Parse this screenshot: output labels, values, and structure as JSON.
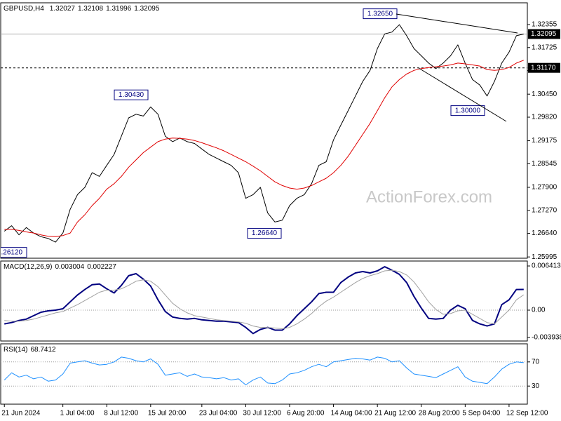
{
  "chart_data": [
    {
      "type": "line",
      "title": "GBPUSD,H4",
      "ohlc": [
        1.32027,
        1.32108,
        1.31996,
        1.32095
      ],
      "watermark": "ActionForex.com",
      "ylim": [
        1.2596,
        1.3295
      ],
      "yticks": [
        1.32355,
        1.31725,
        1.31095,
        {
          "value": 1.3045,
          "label": "1.30450"
        },
        {
          "value": 1.2982,
          "label": "1.29820"
        },
        1.29175,
        1.28545,
        {
          "value": 1.279,
          "label": "1.27900"
        },
        {
          "value": 1.2727,
          "label": "1.27270"
        },
        {
          "value": 1.2664,
          "label": "1.26640"
        },
        1.25995
      ],
      "grid": false,
      "levels": [
        {
          "value": 1.32095,
          "dash": false
        },
        {
          "value": 1.3117,
          "label": "1.31170",
          "dash": true
        }
      ],
      "annotations": [
        {
          "value": 1.3265,
          "label": "1.32650"
        },
        {
          "value": 1.3043,
          "label": "1.30430"
        },
        {
          "value": 1.2664,
          "label": "1.26640"
        },
        {
          "value": 1.3,
          "label": "1.30000"
        },
        {
          "value": 1.2612,
          "label": "1.26120"
        }
      ],
      "series": [
        {
          "color": "#000000",
          "width": 1,
          "values": [
            1.267,
            1.2685,
            1.266,
            1.268,
            1.2665,
            1.2655,
            1.265,
            1.264,
            1.2665,
            1.273,
            1.277,
            1.279,
            1.283,
            1.282,
            1.285,
            1.288,
            1.293,
            1.298,
            1.299,
            1.2985,
            1.301,
            1.299,
            1.293,
            1.2915,
            1.2925,
            1.2915,
            1.291,
            1.2895,
            1.288,
            1.287,
            1.286,
            1.285,
            1.283,
            1.276,
            1.277,
            1.279,
            1.272,
            1.2695,
            1.27,
            1.274,
            1.276,
            1.277,
            1.28,
            1.285,
            1.286,
            1.292,
            1.296,
            1.3,
            1.304,
            1.308,
            1.311,
            1.317,
            1.321,
            1.3215,
            1.3235,
            1.3205,
            1.317,
            1.315,
            1.313,
            1.3115,
            1.313,
            1.315,
            1.318,
            1.313,
            1.3085,
            1.307,
            1.304,
            1.308,
            1.313,
            1.316,
            1.3205,
            1.32095
          ]
        },
        {
          "color": "#e00000",
          "width": 1,
          "values": [
            1.2675,
            1.2675,
            1.2672,
            1.2668,
            1.2665,
            1.266,
            1.2656,
            1.2655,
            1.2658,
            1.2665,
            1.2695,
            1.2715,
            1.274,
            1.276,
            1.2785,
            1.28,
            1.282,
            1.2845,
            1.2865,
            1.2885,
            1.29,
            1.2915,
            1.2922,
            1.2925,
            1.2924,
            1.2922,
            1.2918,
            1.2912,
            1.2905,
            1.2898,
            1.289,
            1.288,
            1.287,
            1.286,
            1.2848,
            1.2835,
            1.282,
            1.2805,
            1.2795,
            1.2788,
            1.2785,
            1.2788,
            1.2795,
            1.2805,
            1.2815,
            1.283,
            1.285,
            1.2875,
            1.2905,
            1.2935,
            1.2965,
            1.3,
            1.3035,
            1.3065,
            1.3085,
            1.31,
            1.311,
            1.3115,
            1.3118,
            1.312,
            1.3122,
            1.3125,
            1.313,
            1.3128,
            1.3125,
            1.3122,
            1.3112,
            1.311,
            1.3112,
            1.3118,
            1.313,
            1.3138
          ]
        }
      ]
    },
    {
      "type": "line",
      "title": "MACD(12,26,9)",
      "last_values": [
        0.003004,
        0.002227
      ],
      "ylim": [
        -0.00448,
        0.00713
      ],
      "yticks": [
        0.006413,
        {
          "value": 0,
          "label": "0.00"
        },
        -0.003938
      ],
      "grid": false,
      "zero_line": true,
      "series": [
        {
          "color": "#000080",
          "width": 2,
          "values": [
            -0.002,
            -0.0018,
            -0.0015,
            -0.0013,
            -0.0008,
            -0.0003,
            -0.0001,
            0.0,
            0.0002,
            0.0012,
            0.0022,
            0.003,
            0.0037,
            0.0038,
            0.0031,
            0.0025,
            0.0036,
            0.005,
            0.0053,
            0.0045,
            0.0035,
            0.0015,
            -0.0002,
            -0.001,
            -0.0012,
            -0.0013,
            -0.0012,
            -0.0014,
            -0.0015,
            -0.0016,
            -0.0016,
            -0.0017,
            -0.0018,
            -0.0025,
            -0.0034,
            -0.0028,
            -0.0025,
            -0.0029,
            -0.0029,
            -0.002,
            -0.0008,
            0.0002,
            0.0012,
            0.0024,
            0.0026,
            0.0026,
            0.004,
            0.0048,
            0.0054,
            0.0056,
            0.0054,
            0.0057,
            0.0063,
            0.0058,
            0.0052,
            0.004,
            0.002,
            0.0003,
            -0.0012,
            -0.0013,
            -0.0012,
            0.0,
            0.0007,
            0.0002,
            -0.0015,
            -0.002,
            -0.0023,
            -0.002,
            0.0008,
            0.0015,
            0.003,
            0.003004
          ]
        },
        {
          "color": "#a0a0a0",
          "width": 1,
          "values": [
            -0.0015,
            -0.0016,
            -0.0016,
            -0.0015,
            -0.0013,
            -0.001,
            -0.0007,
            -0.0004,
            -0.0002,
            0.0003,
            0.0008,
            0.0014,
            0.002,
            0.0026,
            0.0029,
            0.0029,
            0.0031,
            0.0036,
            0.0042,
            0.0044,
            0.0042,
            0.0034,
            0.0022,
            0.001,
            0.0002,
            -0.0004,
            -0.0008,
            -0.001,
            -0.0012,
            -0.0014,
            -0.0015,
            -0.0016,
            -0.0017,
            -0.0019,
            -0.0023,
            -0.0025,
            -0.0025,
            -0.0026,
            -0.0027,
            -0.0025,
            -0.002,
            -0.0013,
            -0.0005,
            0.0005,
            0.0013,
            0.0019,
            0.0026,
            0.0033,
            0.004,
            0.0046,
            0.005,
            0.0053,
            0.0057,
            0.0058,
            0.0056,
            0.0051,
            0.0041,
            0.0027,
            0.0012,
            0.0001,
            -0.0006,
            -0.0005,
            -0.0001,
            0.0,
            -0.0006,
            -0.0012,
            -0.0018,
            -0.002,
            -0.001,
            0.0,
            0.0015,
            0.002227
          ]
        }
      ]
    },
    {
      "type": "line",
      "title": "RSI(14)",
      "last_value": 68.7412,
      "ylim": [
        0,
        100
      ],
      "yticks": [
        70,
        30
      ],
      "grid": true,
      "categories": [
        "21 Jun 2024",
        null,
        null,
        null,
        null,
        null,
        null,
        null,
        "1 Jul 04:00",
        null,
        null,
        null,
        null,
        null,
        "8 Jul 12:00",
        null,
        null,
        null,
        null,
        null,
        "15 Jul 20:00",
        null,
        null,
        null,
        null,
        null,
        null,
        "23 Jul 04:00",
        null,
        null,
        null,
        null,
        null,
        "30 Jul 12:00",
        null,
        null,
        null,
        null,
        null,
        "6 Aug 20:00",
        null,
        null,
        null,
        null,
        null,
        "14 Aug 04:00",
        null,
        null,
        null,
        null,
        null,
        "21 Aug 12:00",
        null,
        null,
        null,
        null,
        null,
        "28 Aug 20:00",
        null,
        null,
        null,
        null,
        null,
        "5 Sep 04:00",
        null,
        null,
        null,
        null,
        null,
        "12 Sep 12:00",
        null,
        null
      ],
      "series": [
        {
          "color": "#1e90ff",
          "width": 1,
          "values": [
            40,
            52,
            45,
            48,
            42,
            45,
            38,
            40,
            50,
            68,
            70,
            72,
            68,
            65,
            66,
            70,
            78,
            76,
            72,
            70,
            75,
            66,
            48,
            50,
            52,
            46,
            50,
            45,
            44,
            42,
            44,
            40,
            42,
            32,
            40,
            45,
            35,
            34,
            40,
            50,
            52,
            56,
            62,
            66,
            62,
            70,
            72,
            74,
            76,
            75,
            73,
            78,
            76,
            70,
            72,
            60,
            50,
            48,
            46,
            44,
            50,
            56,
            62,
            45,
            38,
            36,
            34,
            45,
            58,
            66,
            70,
            68.7412
          ]
        }
      ]
    }
  ]
}
